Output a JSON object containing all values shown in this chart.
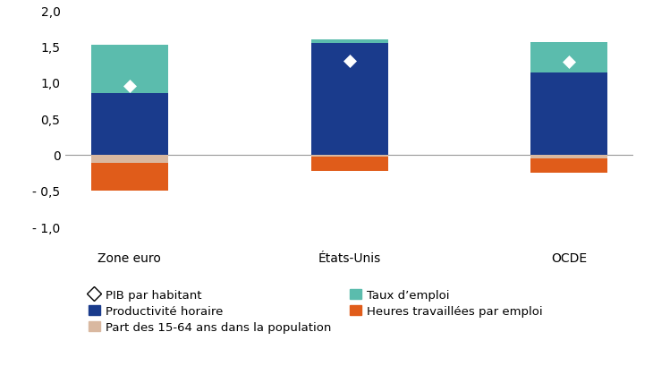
{
  "categories": [
    "Zone euro",
    "États-Unis",
    "OCDE"
  ],
  "productivite_horaire": [
    0.85,
    1.55,
    1.14
  ],
  "taux_emploi": [
    0.67,
    0.05,
    0.42
  ],
  "part_15_64": [
    -0.12,
    -0.03,
    -0.05
  ],
  "heures_travaillees": [
    -0.38,
    -0.2,
    -0.2
  ],
  "pib_par_habitant": [
    0.95,
    1.3,
    1.28
  ],
  "colors": {
    "productivite_horaire": "#1a3b8c",
    "taux_emploi": "#5bbcad",
    "part_15_64": "#d9b8a0",
    "heures_travaillees": "#e05c1a"
  },
  "ylim": [
    -1.0,
    2.0
  ],
  "yticks": [
    -1.0,
    -0.5,
    0.0,
    0.5,
    1.0,
    1.5,
    2.0
  ],
  "ytick_labels": [
    "- 1,0",
    "- 0,5",
    "0",
    "0,5",
    "1,0",
    "1,5",
    "2,0"
  ],
  "legend": {
    "pib_label": "PIB par habitant",
    "productivite_label": "Productivité horaire",
    "taux_emploi_label": "Taux d’emploi",
    "part_label": "Part des 15-64 ans dans la population",
    "heures_label": "Heures travaillées par emploi"
  },
  "bar_width": 0.35,
  "background_color": "#ffffff",
  "axis_color": "#999999",
  "font_size": 10,
  "legend_font_size": 9.5
}
